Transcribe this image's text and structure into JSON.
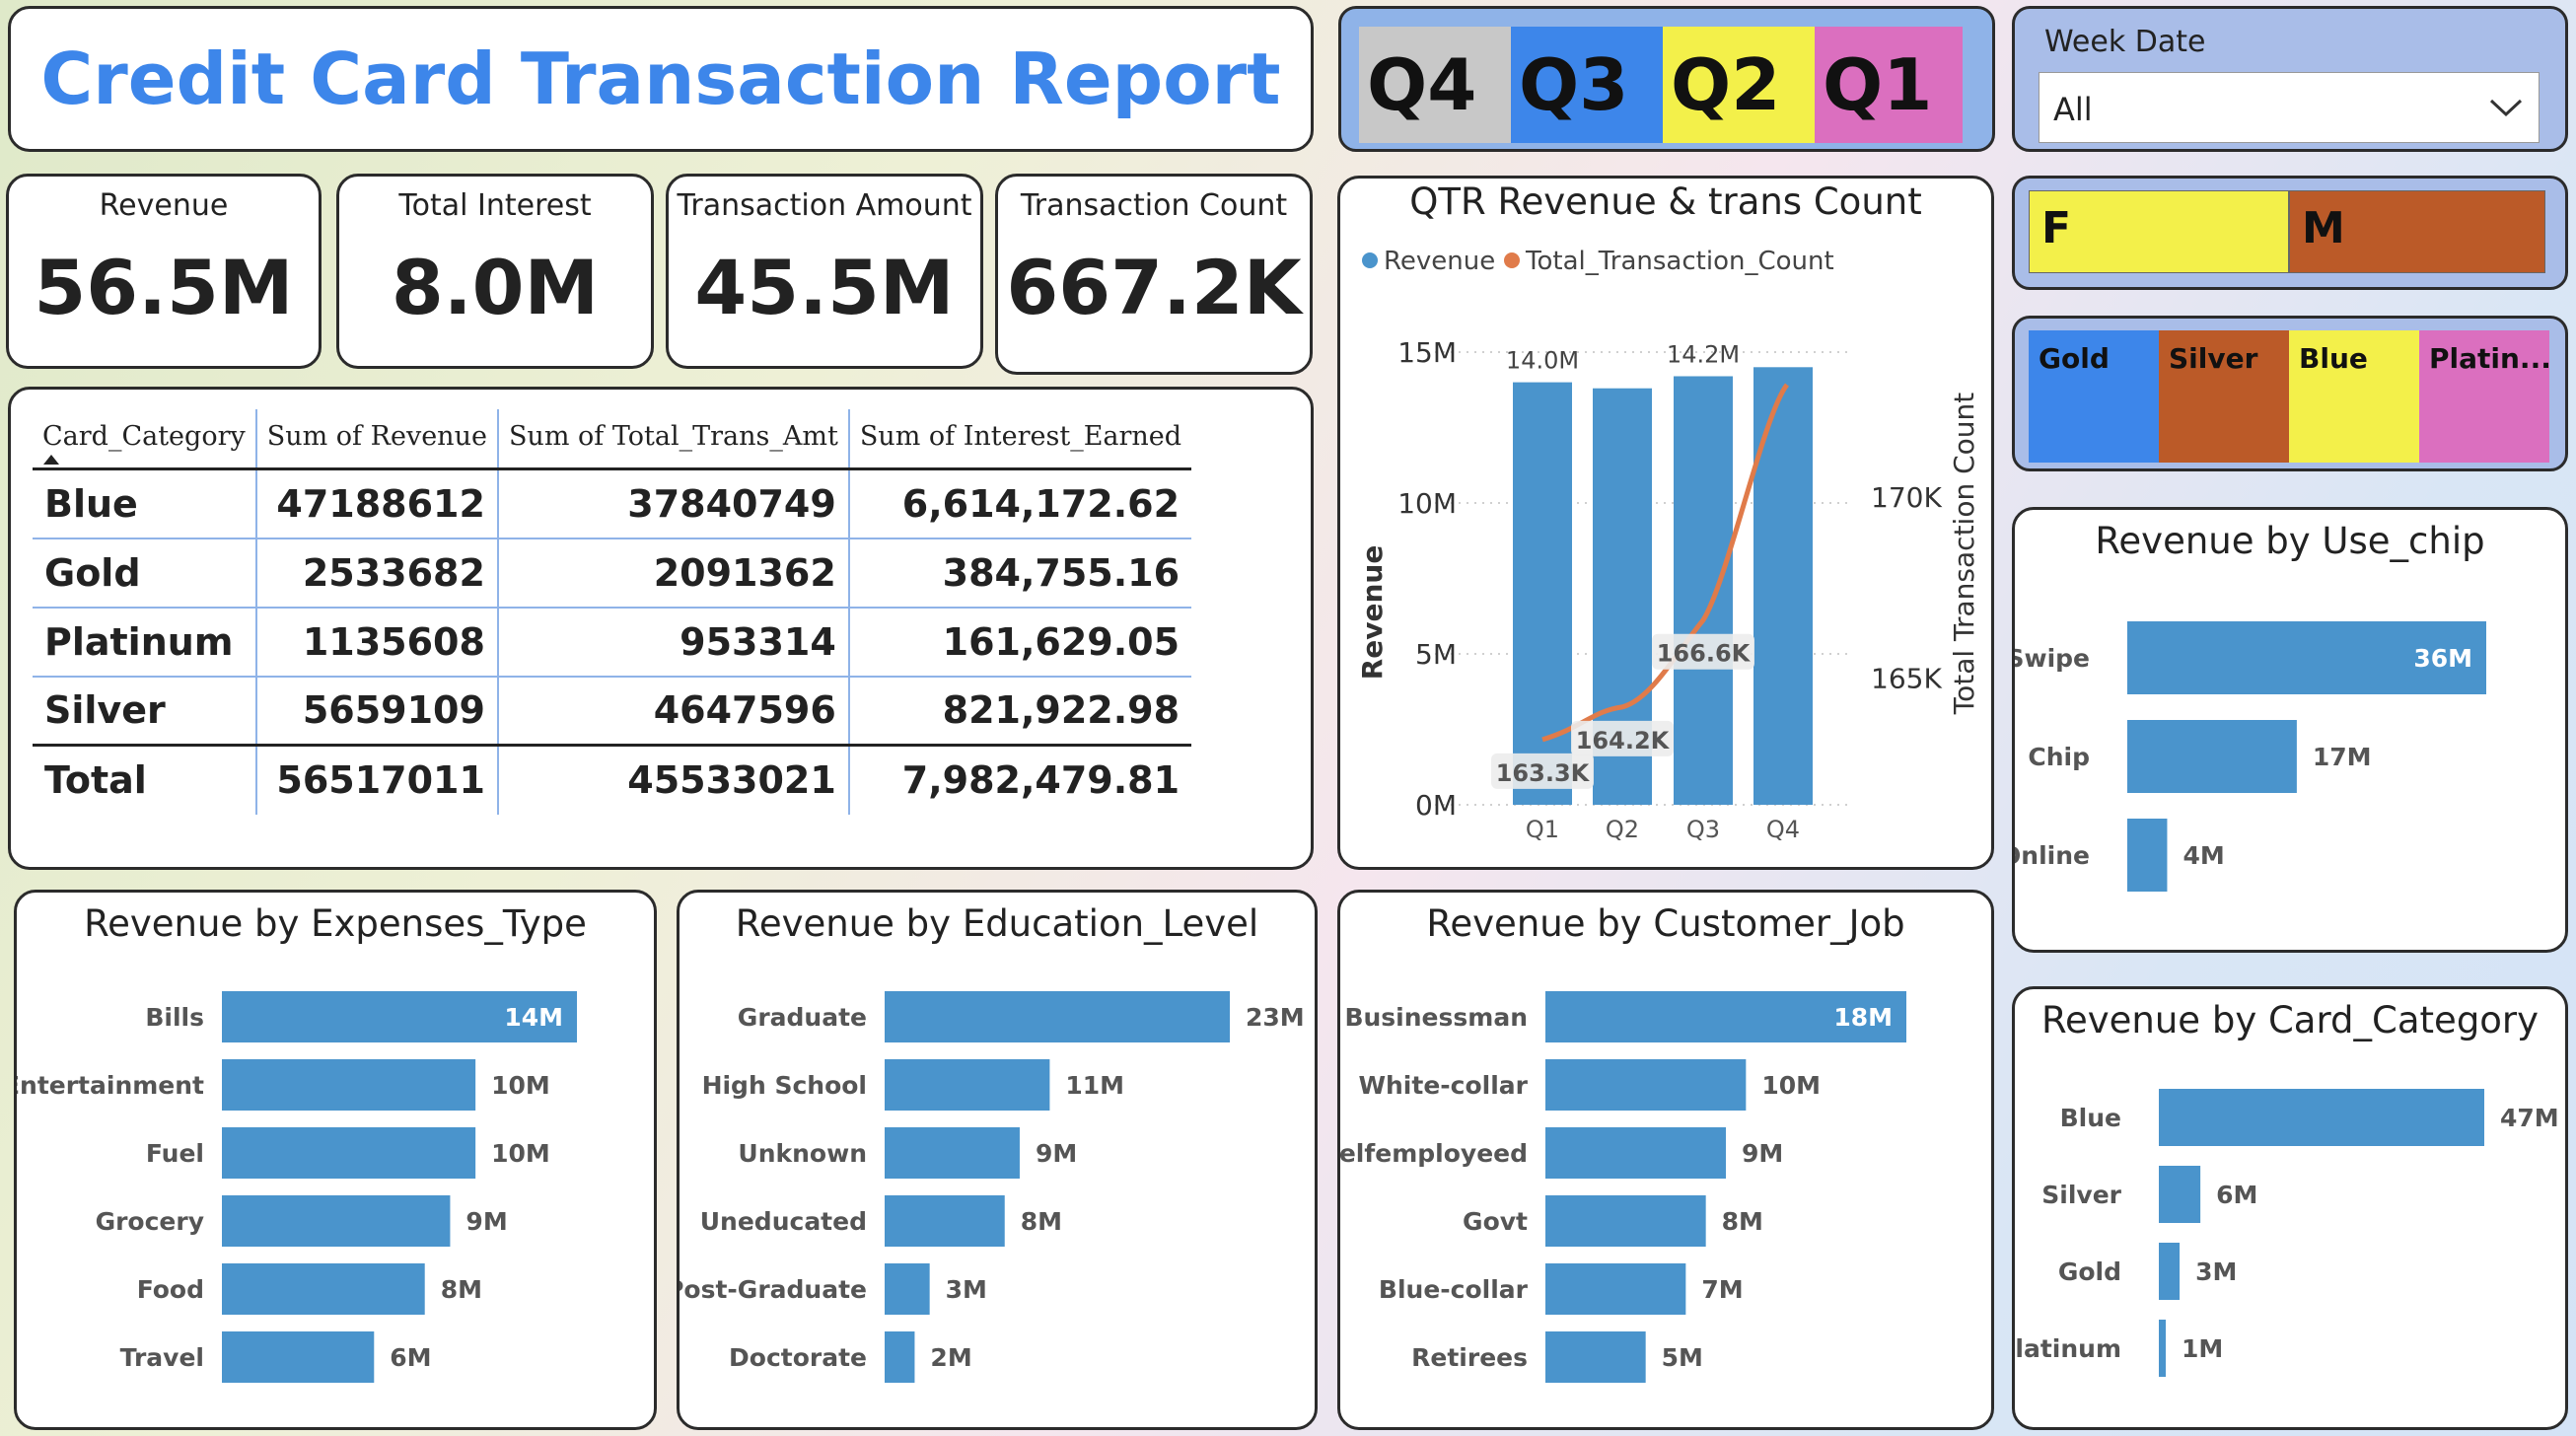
{
  "header": {
    "title": "Credit Card Transaction Report"
  },
  "kpis": [
    {
      "label": "Revenue",
      "value": "56.5M"
    },
    {
      "label": "Total Interest",
      "value": "8.0M"
    },
    {
      "label": "Transaction Amount",
      "value": "45.5M"
    },
    {
      "label": "Transaction Count",
      "value": "667.2K"
    }
  ],
  "quarter_slicer": {
    "items": [
      {
        "label": "Q4",
        "color": "#c8c8c8"
      },
      {
        "label": "Q3",
        "color": "#3d86ea"
      },
      {
        "label": "Q2",
        "color": "#f3f04a"
      },
      {
        "label": "Q1",
        "color": "#db6fbf"
      }
    ]
  },
  "week_date": {
    "label": "Week Date",
    "value": "All"
  },
  "gender_slicer": {
    "items": [
      {
        "label": "F",
        "color": "#f3f04a"
      },
      {
        "label": "M",
        "color": "#bb5a28"
      }
    ]
  },
  "card_slicer": {
    "items": [
      {
        "label": "Gold",
        "color": "#3d86ea"
      },
      {
        "label": "Silver",
        "color": "#bb5a28"
      },
      {
        "label": "Blue",
        "color": "#f3f04a"
      },
      {
        "label": "Platin...",
        "color": "#db6fbf"
      }
    ]
  },
  "matrix": {
    "columns": [
      "Card_Category",
      "Sum of Revenue",
      "Sum of Total_Trans_Amt",
      "Sum of Interest_Earned"
    ],
    "rows": [
      [
        "Blue",
        "47188612",
        "37840749",
        "6,614,172.62"
      ],
      [
        "Gold",
        "2533682",
        "2091362",
        "384,755.16"
      ],
      [
        "Platinum",
        "1135608",
        "953314",
        "161,629.05"
      ],
      [
        "Silver",
        "5659109",
        "4647596",
        "821,922.98"
      ]
    ],
    "total": [
      "Total",
      "56517011",
      "45533021",
      "7,982,479.81"
    ]
  },
  "chart_data": [
    {
      "id": "qtr",
      "type": "bar-line-combo",
      "title": "QTR Revenue & trans Count",
      "legend": [
        {
          "name": "Revenue",
          "color": "#4a94cc"
        },
        {
          "name": "Total_Transaction_Count",
          "color": "#e07b4a"
        }
      ],
      "categories": [
        "Q1",
        "Q2",
        "Q3",
        "Q4"
      ],
      "bar_values": [
        14.0,
        13.8,
        14.2,
        14.5
      ],
      "bar_labels": [
        "14.0M",
        "",
        "14.2M",
        ""
      ],
      "line_values": [
        163.3,
        164.2,
        166.6,
        173.1
      ],
      "line_labels": [
        "163.3K",
        "164.2K",
        "166.6K",
        ""
      ],
      "ylabel": "Revenue",
      "y2label": "Total Transaction Count",
      "y_ticks": [
        "0M",
        "5M",
        "10M",
        "15M"
      ],
      "ylim": [
        0,
        15
      ],
      "y2_ticks": [
        "165K",
        "170K"
      ],
      "y2lim": [
        161.5,
        174.0
      ],
      "bar_color": "#4a94cc",
      "line_color": "#e07b4a"
    },
    {
      "id": "use_chip",
      "type": "bar",
      "title": "Revenue by Use_chip",
      "categories": [
        "Swipe",
        "Chip",
        "Online"
      ],
      "values": [
        36,
        17,
        4
      ],
      "labels": [
        "36M",
        "17M",
        "4M"
      ],
      "max": 36
    },
    {
      "id": "expenses",
      "type": "bar",
      "title": "Revenue by Expenses_Type",
      "categories": [
        "Bills",
        "Entertainment",
        "Fuel",
        "Grocery",
        "Food",
        "Travel"
      ],
      "values": [
        14,
        10,
        10,
        9,
        8,
        6
      ],
      "labels": [
        "14M",
        "10M",
        "10M",
        "9M",
        "8M",
        "6M"
      ],
      "max": 14
    },
    {
      "id": "education",
      "type": "bar",
      "title": "Revenue by Education_Level",
      "categories": [
        "Graduate",
        "High School",
        "Unknown",
        "Uneducated",
        "Post-Graduate",
        "Doctorate"
      ],
      "values": [
        23,
        11,
        9,
        8,
        3,
        2
      ],
      "labels": [
        "23M",
        "11M",
        "9M",
        "8M",
        "3M",
        "2M"
      ],
      "max": 23
    },
    {
      "id": "job",
      "type": "bar",
      "title": "Revenue by Customer_Job",
      "categories": [
        "Businessman",
        "White-collar",
        "Selfemployeed",
        "Govt",
        "Blue-collar",
        "Retirees"
      ],
      "values": [
        18,
        10,
        9,
        8,
        7,
        5
      ],
      "labels": [
        "18M",
        "10M",
        "9M",
        "8M",
        "7M",
        "5M"
      ],
      "max": 18
    },
    {
      "id": "card",
      "type": "bar",
      "title": "Revenue by Card_Category",
      "categories": [
        "Blue",
        "Silver",
        "Gold",
        "Platinum"
      ],
      "values": [
        47,
        6,
        3,
        1
      ],
      "labels": [
        "47M",
        "6M",
        "3M",
        "1M"
      ],
      "max": 47
    }
  ]
}
